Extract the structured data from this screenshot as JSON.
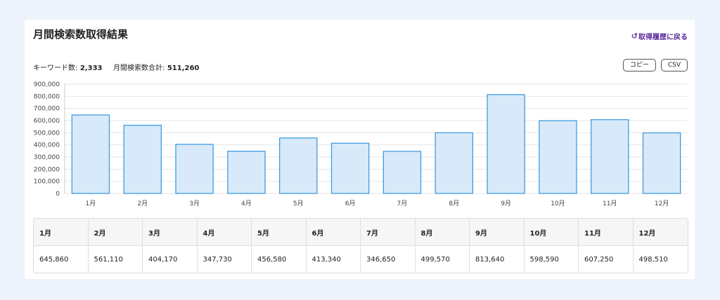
{
  "header": {
    "title": "月間検索数取得結果",
    "back_label": "取得履歴に戻る",
    "back_icon": "undo-icon"
  },
  "summary": {
    "keyword_label": "キーワード数:",
    "keyword_value": "2,333",
    "total_label": "月間検索数合計:",
    "total_value": "511,260"
  },
  "toolbar": {
    "copy_label": "コピー",
    "csv_label": "CSV"
  },
  "colors": {
    "bar_fill": "#d8eafa",
    "bar_stroke": "#3f9be0",
    "link": "#5a2a9a"
  },
  "chart_data": {
    "type": "bar",
    "categories": [
      "1月",
      "2月",
      "3月",
      "4月",
      "5月",
      "6月",
      "7月",
      "8月",
      "9月",
      "10月",
      "11月",
      "12月"
    ],
    "values": [
      645860,
      561110,
      404170,
      347730,
      456580,
      413340,
      346650,
      499570,
      813640,
      598590,
      607250,
      498510
    ],
    "ylim": [
      0,
      900000
    ],
    "yticks": [
      "0",
      "100,000",
      "200,000",
      "300,000",
      "400,000",
      "500,000",
      "600,000",
      "700,000",
      "800,000",
      "900,000"
    ],
    "grid": true
  },
  "table": {
    "headers": [
      "1月",
      "2月",
      "3月",
      "4月",
      "5月",
      "6月",
      "7月",
      "8月",
      "9月",
      "10月",
      "11月",
      "12月"
    ],
    "values": [
      "645,860",
      "561,110",
      "404,170",
      "347,730",
      "456,580",
      "413,340",
      "346,650",
      "499,570",
      "813,640",
      "598,590",
      "607,250",
      "498,510"
    ]
  }
}
